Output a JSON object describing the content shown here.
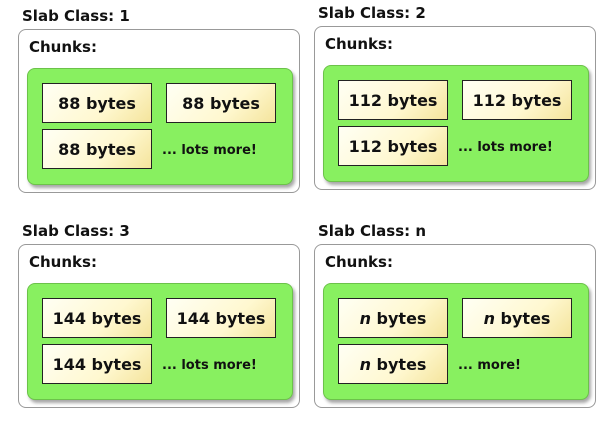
{
  "slabs": [
    {
      "title": "Slab Class: 1",
      "chunks_label": "Chunks:",
      "chunks": [
        "88 bytes",
        "88 bytes",
        "88 bytes"
      ],
      "more": "... lots more!"
    },
    {
      "title": "Slab Class: 2",
      "chunks_label": "Chunks:",
      "chunks": [
        "112 bytes",
        "112 bytes",
        "112 bytes"
      ],
      "more": "... lots more!"
    },
    {
      "title": "Slab Class: 3",
      "chunks_label": "Chunks:",
      "chunks": [
        "144 bytes",
        "144 bytes",
        "144 bytes"
      ],
      "more": "... lots more!"
    },
    {
      "title": "Slab Class: n",
      "chunks_label": "Chunks:",
      "chunk_var": "n",
      "chunk_unit": "bytes",
      "more": "... more!"
    }
  ],
  "colors": {
    "chunk_area": "#88f060",
    "chunk_box": "#fff8d0"
  }
}
